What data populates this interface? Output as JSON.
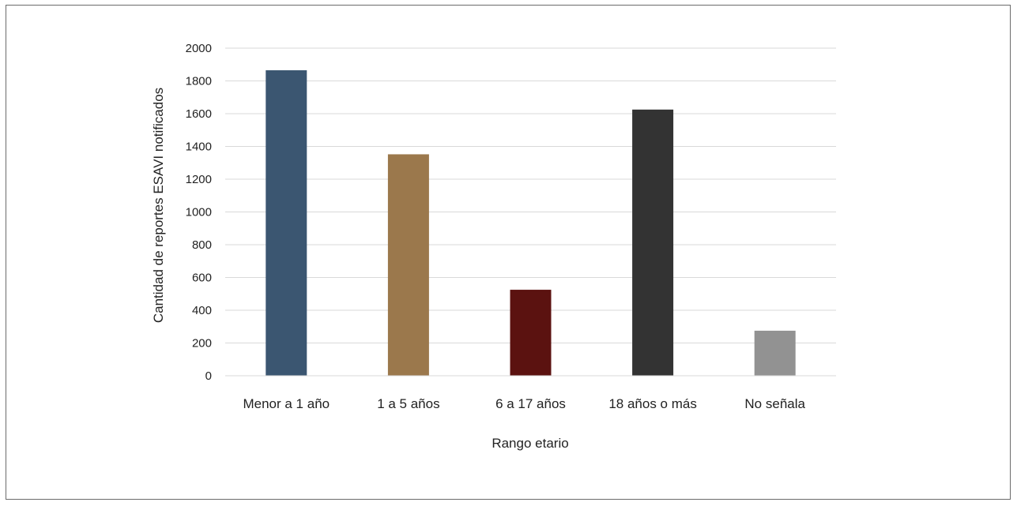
{
  "chart_data": {
    "type": "bar",
    "categories": [
      "Menor a 1 año",
      "1 a 5 años",
      "6 a 17 años",
      "18 años o más",
      "No señala"
    ],
    "values": [
      1865,
      1352,
      525,
      1625,
      275
    ],
    "colors": [
      "#3b5671",
      "#9b784c",
      "#5b1210",
      "#333333",
      "#929292"
    ],
    "xlabel": "Rango etario",
    "ylabel": "Cantidad de reportes ESAVI notificados",
    "ylim": [
      0,
      2000
    ],
    "yticks": [
      0,
      200,
      400,
      600,
      800,
      1000,
      1200,
      1400,
      1600,
      1800,
      2000
    ],
    "grid": true,
    "gridline_color": "#d9d9d9",
    "legend": "none"
  }
}
